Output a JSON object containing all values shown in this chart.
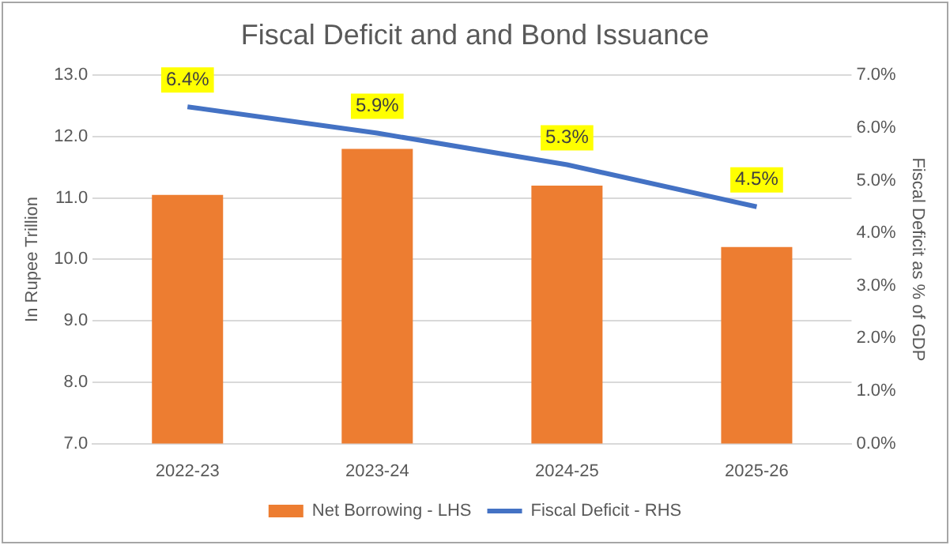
{
  "chart_data": {
    "type": "bar",
    "title": "Fiscal Deficit and and Bond Issuance",
    "ylabel": "In Rupee Trillion",
    "y2label": "Fiscal Deficit as % of GDP",
    "categories": [
      "2022-23",
      "2023-24",
      "2024-25",
      "2025-26"
    ],
    "series": [
      {
        "name": "Net Borrowing - LHS",
        "color": "#ed7d31",
        "values": [
          11.05,
          11.8,
          11.2,
          10.2
        ]
      },
      {
        "name": "Fiscal Deficit - RHS",
        "type": "line",
        "axis": "y2",
        "color": "#4472c4",
        "values": [
          6.4,
          5.9,
          5.3,
          4.5
        ],
        "value_labels": [
          "6.4%",
          "5.9%",
          "5.3%",
          "4.5%"
        ]
      }
    ],
    "ylim": [
      7,
      13
    ],
    "yticks": [
      {
        "value": 7,
        "label": "7.0"
      },
      {
        "value": 8,
        "label": "8.0"
      },
      {
        "value": 9,
        "label": "9.0"
      },
      {
        "value": 10,
        "label": "10.0"
      },
      {
        "value": 11,
        "label": "11.0"
      },
      {
        "value": 12,
        "label": "12.0"
      },
      {
        "value": 13,
        "label": "13.0"
      }
    ],
    "y2lim": [
      0,
      7
    ],
    "y2ticks": [
      {
        "value": 0,
        "label": "0.0%"
      },
      {
        "value": 1,
        "label": "1.0%"
      },
      {
        "value": 2,
        "label": "2.0%"
      },
      {
        "value": 3,
        "label": "3.0%"
      },
      {
        "value": 4,
        "label": "4.0%"
      },
      {
        "value": 5,
        "label": "5.0%"
      },
      {
        "value": 6,
        "label": "6.0%"
      },
      {
        "value": 7,
        "label": "7.0%"
      }
    ],
    "grid": "y",
    "legend": "bottom"
  }
}
